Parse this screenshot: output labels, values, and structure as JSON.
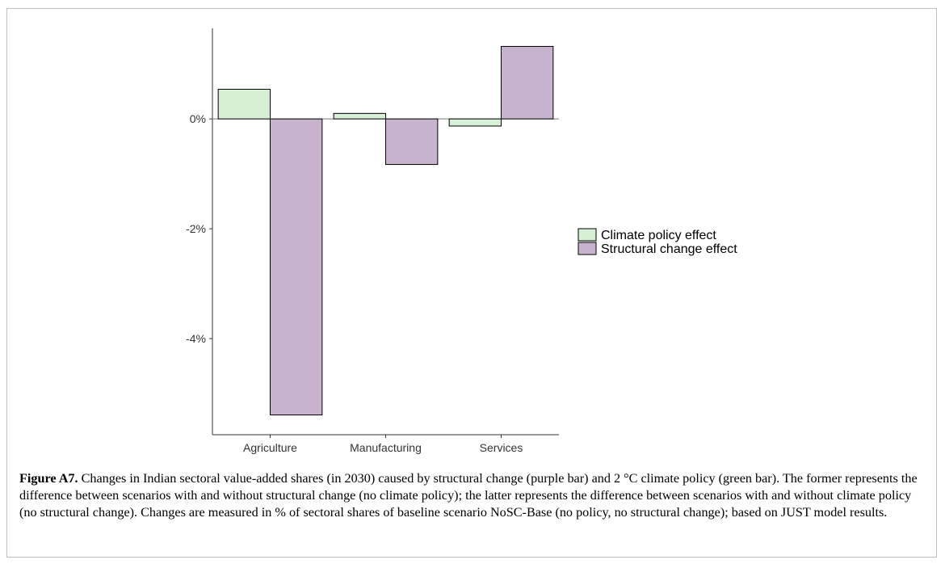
{
  "chart_data": {
    "type": "bar",
    "categories": [
      "Agriculture",
      "Manufacturing",
      "Services"
    ],
    "series": [
      {
        "name": "Climate policy effect",
        "color": "#d5f0d5",
        "values": [
          0.54,
          0.1,
          -0.13
        ]
      },
      {
        "name": "Structural change effect",
        "color": "#c8b3cf",
        "values": [
          -5.39,
          -0.83,
          1.32
        ]
      }
    ],
    "yticks": [
      0,
      -2,
      -4
    ],
    "ytick_labels": [
      "0%",
      "-2%",
      "-4%"
    ],
    "ylim": [
      -5.75,
      1.65
    ],
    "xlabel": "",
    "ylabel": "",
    "legend_position": "right",
    "grid": false,
    "zero_line": true
  },
  "caption": {
    "label": "Figure A7.",
    "text": " Changes in Indian sectoral value-added shares (in 2030) caused by structural change (purple bar) and 2 °C climate policy (green bar). The former represents the difference between scenarios with and without structural change (no climate policy); the latter represents the difference between scenarios with and without climate policy (no structural change). Changes are measured in % of sectoral shares of baseline scenario NoSC-Base (no policy, no structural change); based on JUST model results."
  }
}
